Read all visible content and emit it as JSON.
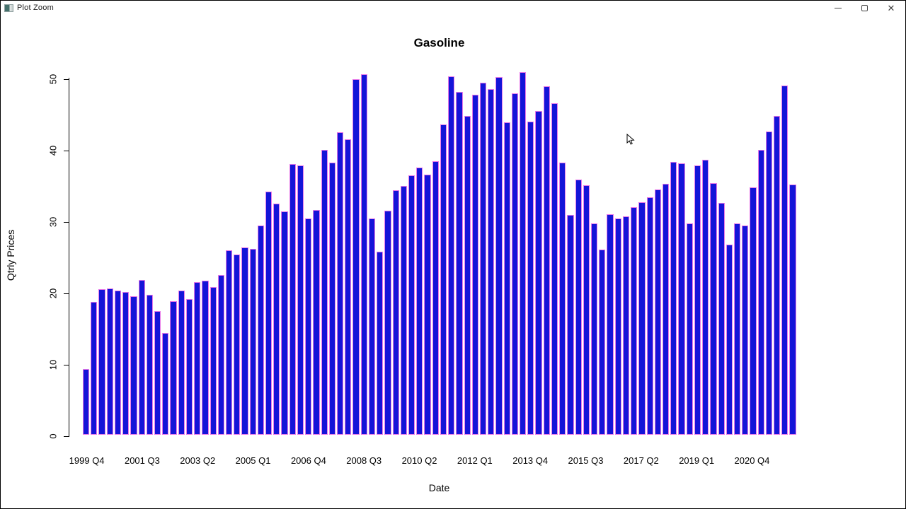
{
  "window": {
    "title": "Plot Zoom"
  },
  "chart_data": {
    "type": "bar",
    "title": "Gasoline",
    "xlabel": "Date",
    "ylabel": "Qtrly Prices",
    "ylim": [
      0,
      50
    ],
    "y_ticks": [
      0,
      10,
      20,
      30,
      40,
      50
    ],
    "x_tick_labels": [
      "1999 Q4",
      "2001 Q3",
      "2003 Q2",
      "2005 Q1",
      "2006 Q4",
      "2008 Q3",
      "2010 Q2",
      "2012 Q1",
      "2013 Q4",
      "2015 Q3",
      "2017 Q2",
      "2019 Q1",
      "2020 Q4"
    ],
    "x_tick_step": 7,
    "grid": false,
    "legend": false,
    "bar_fill": "#1414d8",
    "bar_border": "#e87ae8",
    "values": [
      9.2,
      18.6,
      20.4,
      20.5,
      20.2,
      20.0,
      19.4,
      21.7,
      19.6,
      17.3,
      14.3,
      18.7,
      20.2,
      19.0,
      21.4,
      21.6,
      20.7,
      22.4,
      25.8,
      25.3,
      26.2,
      26.0,
      29.3,
      34.1,
      32.4,
      31.3,
      37.9,
      37.7,
      30.3,
      31.5,
      39.9,
      38.1,
      42.4,
      41.4,
      49.8,
      50.5,
      30.3,
      25.6,
      31.4,
      34.3,
      34.9,
      36.3,
      37.4,
      36.4,
      38.3,
      43.5,
      50.2,
      48.0,
      44.7,
      47.6,
      49.3,
      48.4,
      50.1,
      43.8,
      47.8,
      50.8,
      43.9,
      45.4,
      48.8,
      46.4,
      38.1,
      30.8,
      35.7,
      35.0,
      29.6,
      25.9,
      30.9,
      30.3,
      30.6,
      31.9,
      32.6,
      33.3,
      34.4,
      35.2,
      38.2,
      38.0,
      29.6,
      37.7,
      38.5,
      35.3,
      32.5,
      26.6,
      29.6,
      29.3,
      34.7,
      39.9,
      42.5,
      44.7,
      48.9,
      35.1
    ]
  }
}
